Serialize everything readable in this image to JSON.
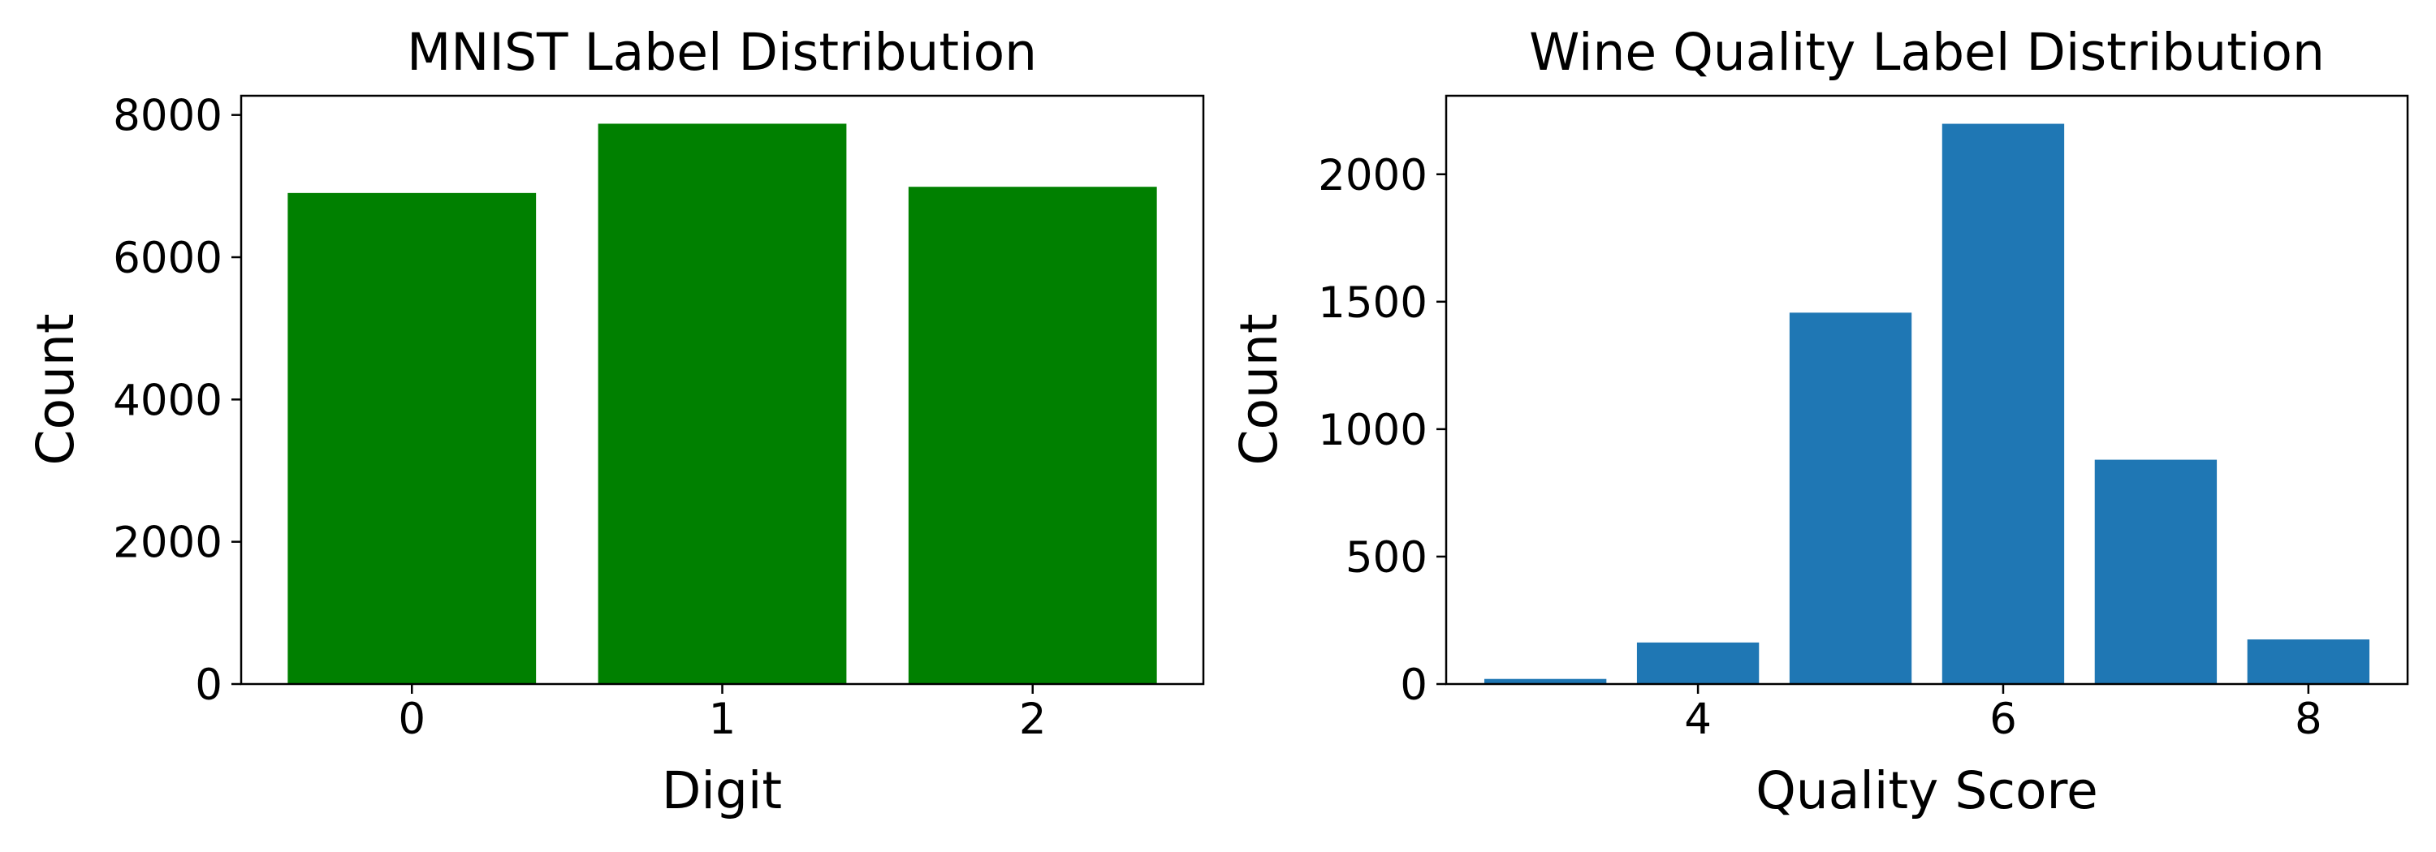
{
  "chart_data": [
    {
      "type": "bar",
      "title": "MNIST Label Distribution",
      "xlabel": "Digit",
      "ylabel": "Count",
      "categories": [
        "0",
        "1",
        "2"
      ],
      "x": [
        0,
        1,
        2
      ],
      "values": [
        6903,
        7877,
        6990
      ],
      "xlim": [
        -0.55,
        2.55
      ],
      "ylim": [
        0,
        8270
      ],
      "xticks": [
        0,
        1,
        2
      ],
      "xtick_labels": [
        "0",
        "1",
        "2"
      ],
      "yticks": [
        0,
        2000,
        4000,
        6000,
        8000
      ],
      "ytick_labels": [
        "0",
        "2000",
        "4000",
        "6000",
        "8000"
      ],
      "bar_width": 0.8,
      "color": "#008000",
      "grid": false,
      "legend": "none"
    },
    {
      "type": "bar",
      "title": "Wine Quality Label Distribution",
      "xlabel": "Quality Score",
      "ylabel": "Count",
      "categories": [
        "3",
        "4",
        "5",
        "6",
        "7",
        "8"
      ],
      "x": [
        3,
        4,
        5,
        6,
        7,
        8
      ],
      "values": [
        20,
        163,
        1457,
        2198,
        880,
        175
      ],
      "xlim": [
        2.35,
        8.65
      ],
      "ylim": [
        0,
        2308
      ],
      "xticks": [
        4,
        6,
        8
      ],
      "xtick_labels": [
        "4",
        "6",
        "8"
      ],
      "yticks": [
        0,
        500,
        1000,
        1500,
        2000
      ],
      "ytick_labels": [
        "0",
        "500",
        "1000",
        "1500",
        "2000"
      ],
      "bar_width": 0.8,
      "color": "#1f77b4",
      "grid": false,
      "legend": "none"
    }
  ]
}
